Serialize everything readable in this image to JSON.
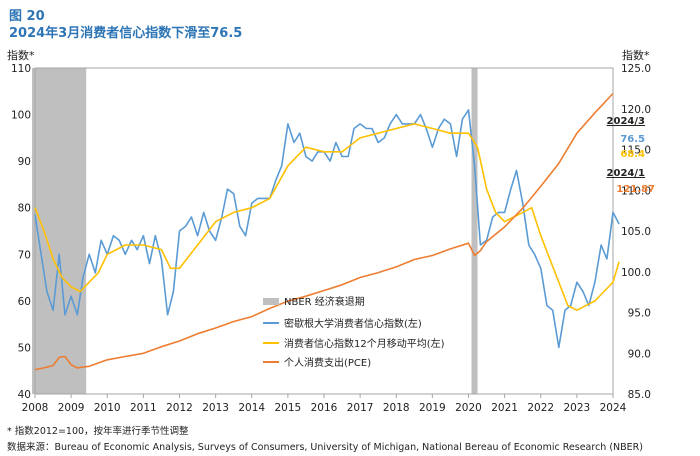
{
  "figure_number": "图 20",
  "figure_title": "2024年3月消费者信心指数下滑至76.5",
  "left_axis_unit": "指数*",
  "right_axis_unit": "指数*",
  "callouts": {
    "date1": "2024/3",
    "value1": "76.5",
    "value2": "68.4",
    "date2": "2024/1",
    "value3": "121.87"
  },
  "notes": {
    "footnote": "* 指数2012=100，按年率进行季节性调整",
    "source": "数据来源：Bureau of Economic Analysis, Surveys of Consumers, University of Michigan, National Bereau of Economic Research (NBER)"
  },
  "colors": {
    "title": "#2e75b6",
    "sentiment": "#5b9bd5",
    "moving_avg": "#ffc000",
    "pce": "#ed7d31",
    "recession": "#bfbfbf"
  },
  "chart_data": {
    "type": "line",
    "title": "2024年3月消费者信心指数下滑至76.5",
    "x_ticks": [
      "2008",
      "2009",
      "2010",
      "2011",
      "2012",
      "2013",
      "2014",
      "2015",
      "2016",
      "2017",
      "2018",
      "2019",
      "2020",
      "2021",
      "2022",
      "2023",
      "2024"
    ],
    "left_y": {
      "label": "指数*",
      "lim": [
        40,
        110
      ],
      "ticks": [
        "40",
        "50",
        "60",
        "70",
        "80",
        "90",
        "100",
        "110"
      ]
    },
    "right_y": {
      "label": "指数*",
      "lim": [
        85,
        125
      ],
      "ticks": [
        "85.0",
        "90.0",
        "95.0",
        "100.0",
        "105.0",
        "110.0",
        "115.0",
        "120.0",
        "125.0"
      ]
    },
    "recessions": [
      {
        "label": "NBER 经济衰退期",
        "start": 2007.917,
        "end": 2009.417
      },
      {
        "label": "NBER 经济衰退期",
        "start": 2020.083,
        "end": 2020.25
      }
    ],
    "legend": [
      "NBER 经济衰退期",
      "密歇根大学消费者信心指数(左)",
      "消费者信心指数12个月移动平均(左)",
      "个人消费支出(PCE)"
    ],
    "series": [
      {
        "name": "密歇根大学消费者信心指数(左)",
        "axis": "left",
        "points": [
          [
            2008.0,
            78.5
          ],
          [
            2008.17,
            70
          ],
          [
            2008.33,
            62
          ],
          [
            2008.5,
            58
          ],
          [
            2008.67,
            70
          ],
          [
            2008.83,
            57
          ],
          [
            2009.0,
            61
          ],
          [
            2009.17,
            57
          ],
          [
            2009.33,
            65
          ],
          [
            2009.5,
            70
          ],
          [
            2009.67,
            66
          ],
          [
            2009.83,
            73
          ],
          [
            2010.0,
            70
          ],
          [
            2010.17,
            74
          ],
          [
            2010.33,
            73
          ],
          [
            2010.5,
            70
          ],
          [
            2010.67,
            73
          ],
          [
            2010.83,
            71
          ],
          [
            2011.0,
            74
          ],
          [
            2011.17,
            68
          ],
          [
            2011.33,
            74
          ],
          [
            2011.5,
            69
          ],
          [
            2011.67,
            57
          ],
          [
            2011.83,
            62
          ],
          [
            2012.0,
            75
          ],
          [
            2012.17,
            76
          ],
          [
            2012.33,
            78
          ],
          [
            2012.5,
            74
          ],
          [
            2012.67,
            79
          ],
          [
            2012.83,
            75
          ],
          [
            2013.0,
            73
          ],
          [
            2013.17,
            78
          ],
          [
            2013.33,
            84
          ],
          [
            2013.5,
            83
          ],
          [
            2013.67,
            76
          ],
          [
            2013.83,
            74
          ],
          [
            2014.0,
            81
          ],
          [
            2014.17,
            82
          ],
          [
            2014.33,
            82
          ],
          [
            2014.5,
            82
          ],
          [
            2014.67,
            86
          ],
          [
            2014.83,
            89
          ],
          [
            2015.0,
            98
          ],
          [
            2015.17,
            94
          ],
          [
            2015.33,
            96
          ],
          [
            2015.5,
            91
          ],
          [
            2015.67,
            90
          ],
          [
            2015.83,
            92
          ],
          [
            2016.0,
            92
          ],
          [
            2016.17,
            90
          ],
          [
            2016.33,
            94
          ],
          [
            2016.5,
            91
          ],
          [
            2016.67,
            91
          ],
          [
            2016.83,
            97
          ],
          [
            2017.0,
            98
          ],
          [
            2017.17,
            97
          ],
          [
            2017.33,
            97
          ],
          [
            2017.5,
            94
          ],
          [
            2017.67,
            95
          ],
          [
            2017.83,
            98
          ],
          [
            2018.0,
            100
          ],
          [
            2018.17,
            98
          ],
          [
            2018.33,
            98
          ],
          [
            2018.5,
            98
          ],
          [
            2018.67,
            100
          ],
          [
            2018.83,
            97
          ],
          [
            2019.0,
            93
          ],
          [
            2019.17,
            97
          ],
          [
            2019.33,
            99
          ],
          [
            2019.5,
            98
          ],
          [
            2019.67,
            91
          ],
          [
            2019.83,
            99
          ],
          [
            2020.0,
            101
          ],
          [
            2020.17,
            89
          ],
          [
            2020.33,
            72
          ],
          [
            2020.5,
            73
          ],
          [
            2020.67,
            78
          ],
          [
            2020.83,
            79
          ],
          [
            2021.0,
            79
          ],
          [
            2021.17,
            84
          ],
          [
            2021.33,
            88
          ],
          [
            2021.5,
            81
          ],
          [
            2021.67,
            72
          ],
          [
            2021.83,
            70
          ],
          [
            2022.0,
            67
          ],
          [
            2022.17,
            59
          ],
          [
            2022.33,
            58
          ],
          [
            2022.5,
            50
          ],
          [
            2022.67,
            58
          ],
          [
            2022.83,
            59
          ],
          [
            2023.0,
            64
          ],
          [
            2023.17,
            62
          ],
          [
            2023.33,
            59
          ],
          [
            2023.5,
            64
          ],
          [
            2023.67,
            72
          ],
          [
            2023.83,
            69
          ],
          [
            2024.0,
            79
          ],
          [
            2024.17,
            76.5
          ]
        ]
      },
      {
        "name": "消费者信心指数12个月移动平均(左)",
        "axis": "left",
        "points": [
          [
            2008.0,
            80
          ],
          [
            2008.25,
            75
          ],
          [
            2008.5,
            69
          ],
          [
            2008.75,
            65
          ],
          [
            2009.0,
            63
          ],
          [
            2009.25,
            62
          ],
          [
            2009.5,
            64
          ],
          [
            2009.75,
            66
          ],
          [
            2010.0,
            70
          ],
          [
            2010.5,
            72
          ],
          [
            2011.0,
            72
          ],
          [
            2011.5,
            71
          ],
          [
            2011.75,
            67
          ],
          [
            2012.0,
            67
          ],
          [
            2012.5,
            72
          ],
          [
            2013.0,
            77
          ],
          [
            2013.5,
            79
          ],
          [
            2014.0,
            80
          ],
          [
            2014.5,
            82
          ],
          [
            2015.0,
            89
          ],
          [
            2015.5,
            93
          ],
          [
            2016.0,
            92
          ],
          [
            2016.5,
            92
          ],
          [
            2017.0,
            95
          ],
          [
            2017.5,
            96
          ],
          [
            2018.0,
            97
          ],
          [
            2018.5,
            98
          ],
          [
            2019.0,
            97
          ],
          [
            2019.5,
            96
          ],
          [
            2020.0,
            96
          ],
          [
            2020.25,
            93
          ],
          [
            2020.5,
            84
          ],
          [
            2020.75,
            79
          ],
          [
            2021.0,
            77
          ],
          [
            2021.5,
            79
          ],
          [
            2021.75,
            80
          ],
          [
            2022.0,
            74
          ],
          [
            2022.5,
            64
          ],
          [
            2022.75,
            59
          ],
          [
            2023.0,
            58
          ],
          [
            2023.5,
            60
          ],
          [
            2023.75,
            62
          ],
          [
            2024.0,
            64
          ],
          [
            2024.17,
            68.4
          ]
        ]
      },
      {
        "name": "个人消费支出(PCE)",
        "axis": "right",
        "points": [
          [
            2008.0,
            88.0
          ],
          [
            2008.25,
            88.2
          ],
          [
            2008.5,
            88.5
          ],
          [
            2008.67,
            89.5
          ],
          [
            2008.83,
            89.6
          ],
          [
            2009.0,
            88.6
          ],
          [
            2009.17,
            88.2
          ],
          [
            2009.33,
            88.3
          ],
          [
            2009.5,
            88.4
          ],
          [
            2009.75,
            88.8
          ],
          [
            2010.0,
            89.2
          ],
          [
            2010.5,
            89.6
          ],
          [
            2011.0,
            90.0
          ],
          [
            2011.5,
            90.8
          ],
          [
            2012.0,
            91.5
          ],
          [
            2012.5,
            92.4
          ],
          [
            2013.0,
            93.1
          ],
          [
            2013.5,
            93.9
          ],
          [
            2014.0,
            94.5
          ],
          [
            2014.5,
            95.5
          ],
          [
            2015.0,
            96.4
          ],
          [
            2015.5,
            97.0
          ],
          [
            2016.0,
            97.7
          ],
          [
            2016.5,
            98.4
          ],
          [
            2017.0,
            99.3
          ],
          [
            2017.5,
            99.9
          ],
          [
            2018.0,
            100.6
          ],
          [
            2018.5,
            101.5
          ],
          [
            2019.0,
            102.0
          ],
          [
            2019.5,
            102.8
          ],
          [
            2020.0,
            103.5
          ],
          [
            2020.17,
            102.0
          ],
          [
            2020.33,
            102.6
          ],
          [
            2020.5,
            103.7
          ],
          [
            2021.0,
            105.5
          ],
          [
            2021.5,
            107.8
          ],
          [
            2022.0,
            110.5
          ],
          [
            2022.5,
            113.3
          ],
          [
            2023.0,
            117.0
          ],
          [
            2023.5,
            119.5
          ],
          [
            2024.0,
            121.87
          ]
        ]
      }
    ]
  }
}
